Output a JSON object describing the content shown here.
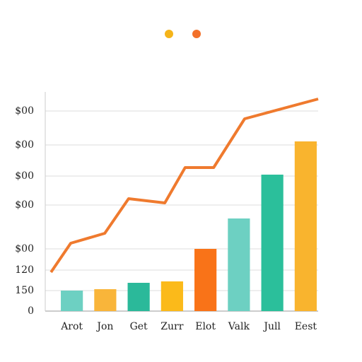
{
  "chart_data": {
    "type": "bar",
    "categories": [
      "Arot",
      "Jon",
      "Get",
      "Zurr",
      "Elot",
      "Valk",
      "Jull",
      "Eest"
    ],
    "values": [
      29,
      31,
      40,
      42,
      88,
      131,
      193,
      240
    ],
    "colors": [
      "#6dd0c2",
      "#f9b53a",
      "#2bb99a",
      "#fbba1a",
      "#f97318",
      "#6dd0c2",
      "#2bbf9b",
      "#f9b42e"
    ],
    "line": {
      "color": "#ef7a2e",
      "x": [
        2.6,
        9.8,
        22.2,
        30.9,
        44.1,
        51.5,
        61.9,
        73.2,
        100
      ],
      "values": [
        55,
        96,
        110,
        159,
        153,
        203,
        203,
        272,
        300
      ]
    },
    "xlim": [
      0,
      100
    ],
    "ylim": [
      0,
      310
    ],
    "yticks": [
      0,
      {
        "value": 29,
        "label": "150"
      },
      {
        "value": 58,
        "label": "120"
      },
      {
        "value": 88,
        "label": "$00"
      },
      {
        "value": 150,
        "label": "$00"
      },
      {
        "value": 191,
        "label": "$00"
      },
      {
        "value": 235,
        "label": "$00"
      },
      {
        "value": 283,
        "label": "$00"
      }
    ],
    "grid": true,
    "legend_colors": [
      "#f5b41a",
      "#f2702a"
    ]
  }
}
